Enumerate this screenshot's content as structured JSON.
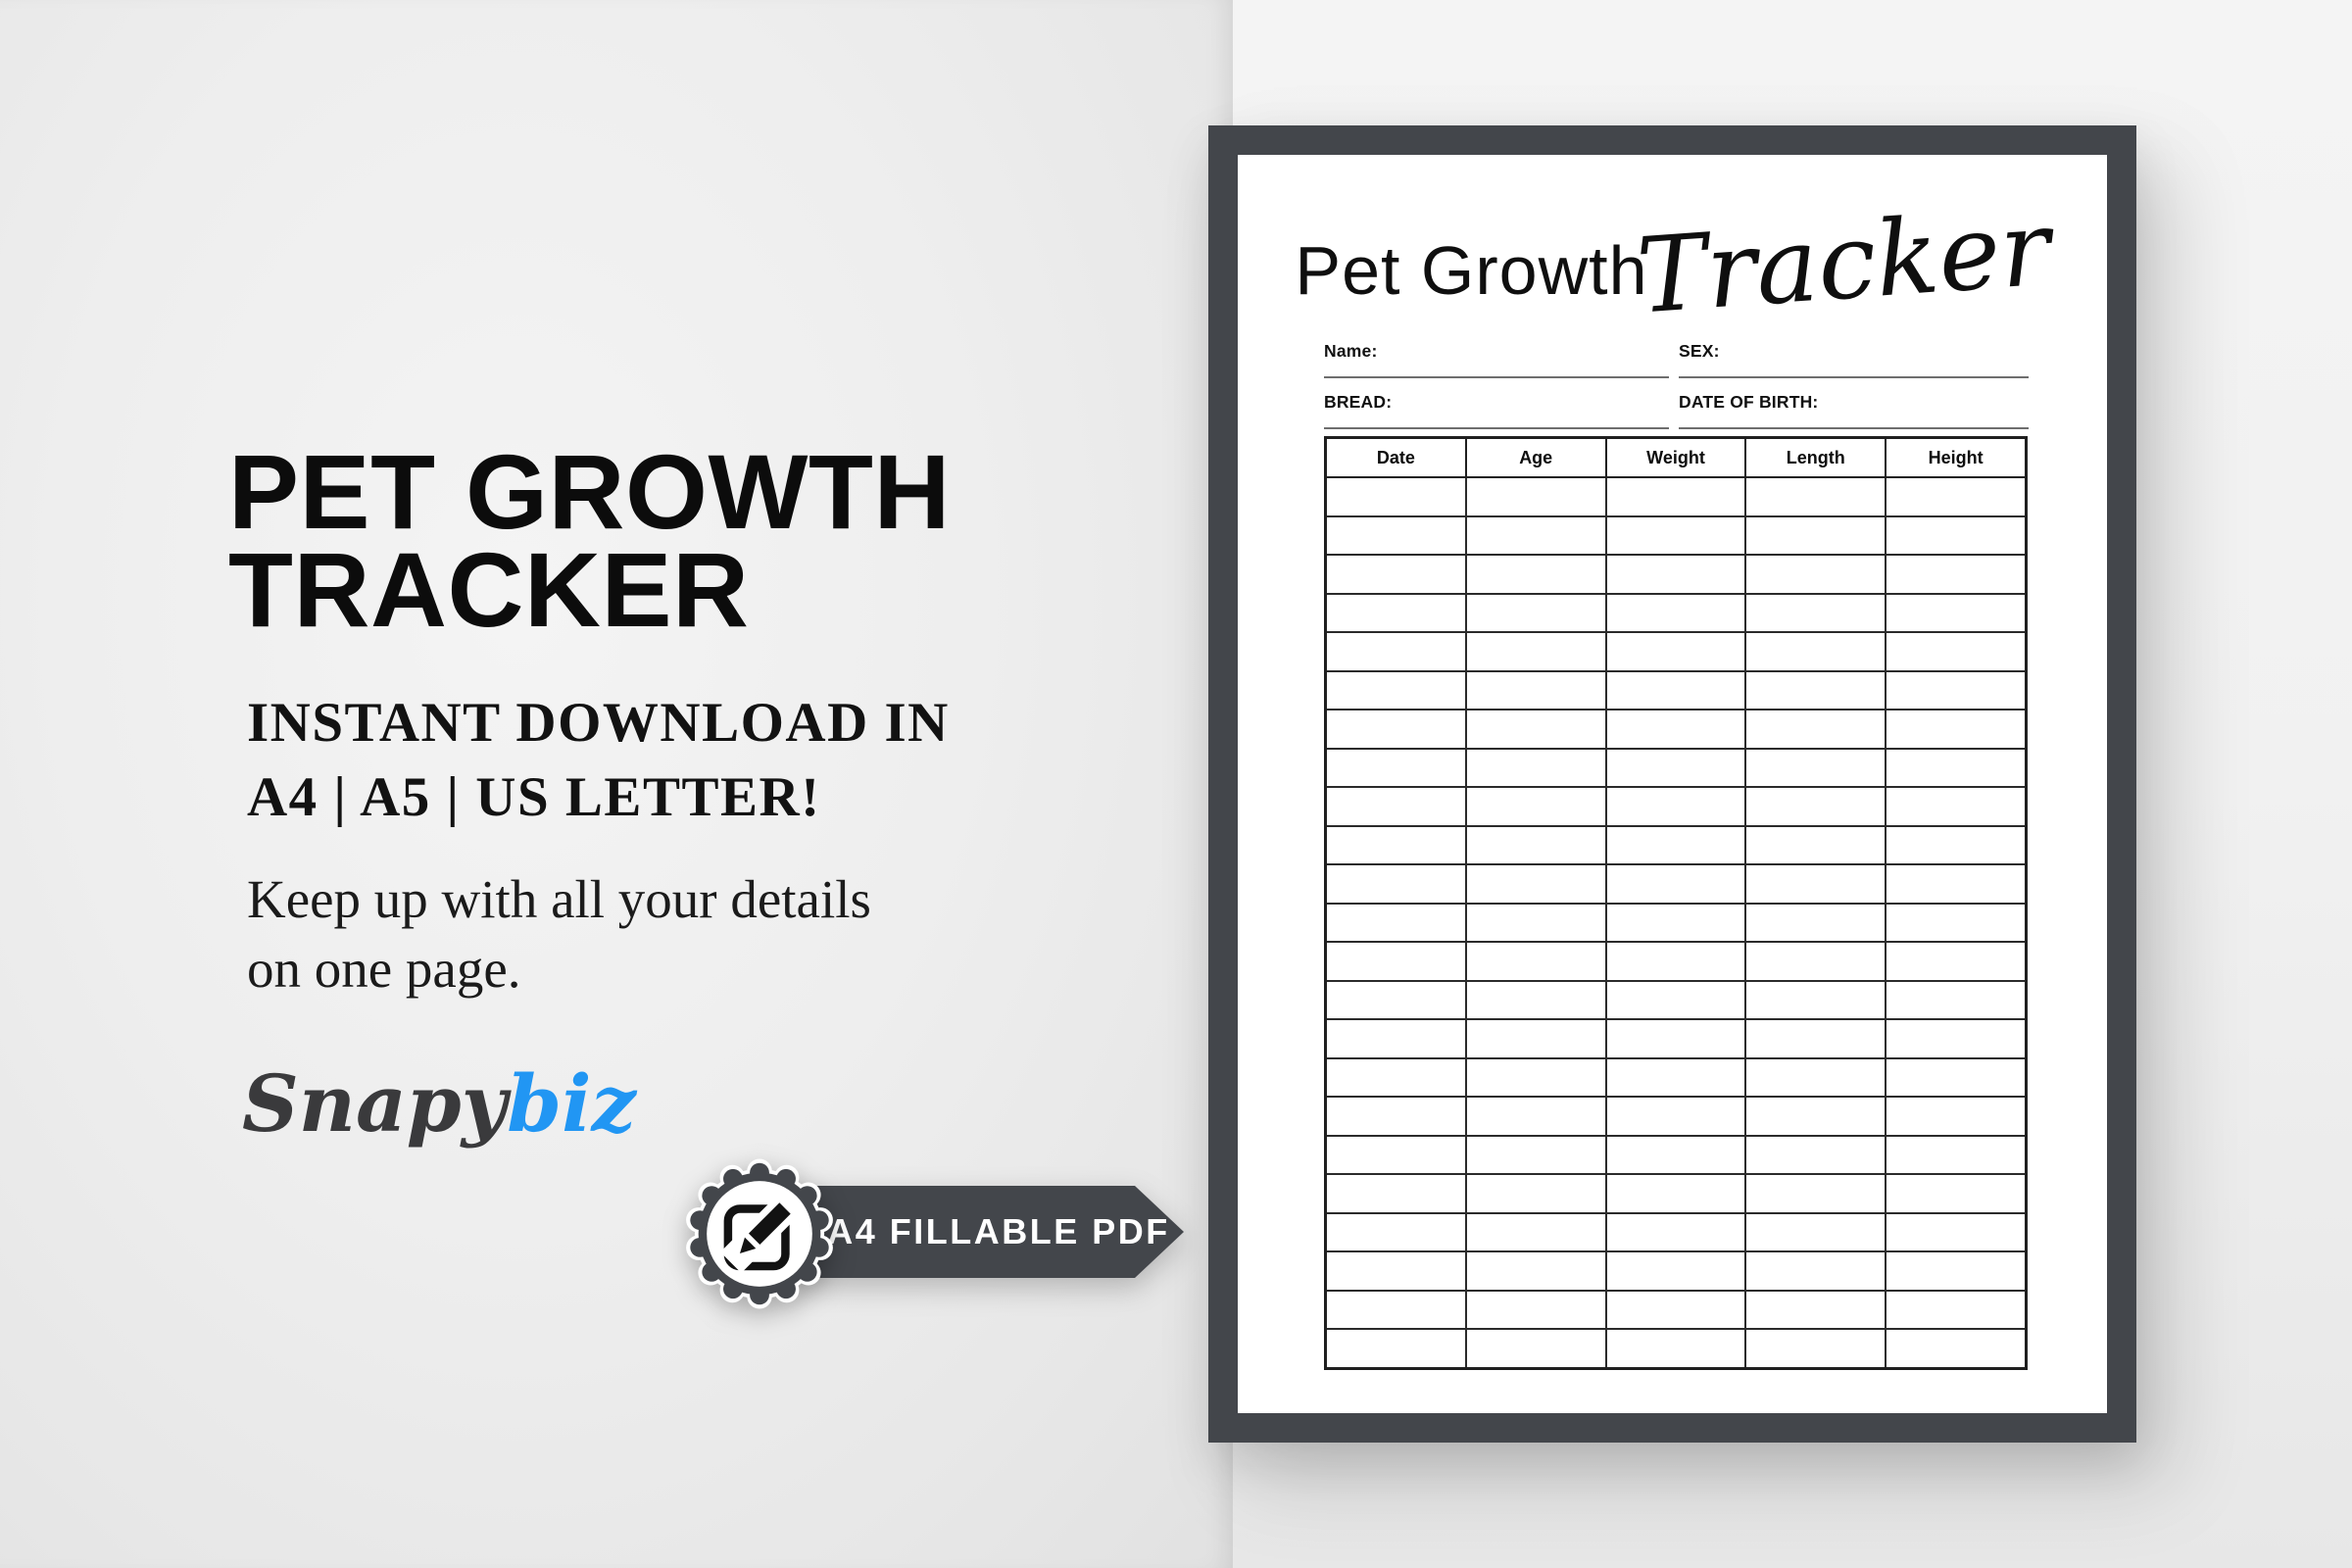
{
  "left_panel": {
    "heading": {
      "line1": "PET GROWTH",
      "line2": "TRACKER"
    },
    "subheading": {
      "line1": "INSTANT DOWNLOAD IN",
      "line2": "A4 | A5 | US LETTER!"
    },
    "description": {
      "line1": "Keep up with all your details",
      "line2": "on one page."
    },
    "logo": {
      "text_primary": "Snapy",
      "text_accent": "biz"
    },
    "badge": {
      "ribbon_label": "A4 FILLABLE PDF",
      "icon": "edit-pencil-square-icon"
    }
  },
  "poster": {
    "title": {
      "regular": "Pet Growth",
      "script": "Tracker"
    },
    "fields": {
      "name_label": "Name:",
      "sex_label": "SEX:",
      "breed_label": "BREAD:",
      "dob_label": "DATE OF BIRTH:"
    },
    "table": {
      "headers": [
        "Date",
        "Age",
        "Weight",
        "Length",
        "Height"
      ],
      "blank_row_count": 23
    }
  },
  "colors": {
    "frame_dark": "#43464b",
    "accent_blue": "#2196f3",
    "page_white": "#ffffff"
  }
}
